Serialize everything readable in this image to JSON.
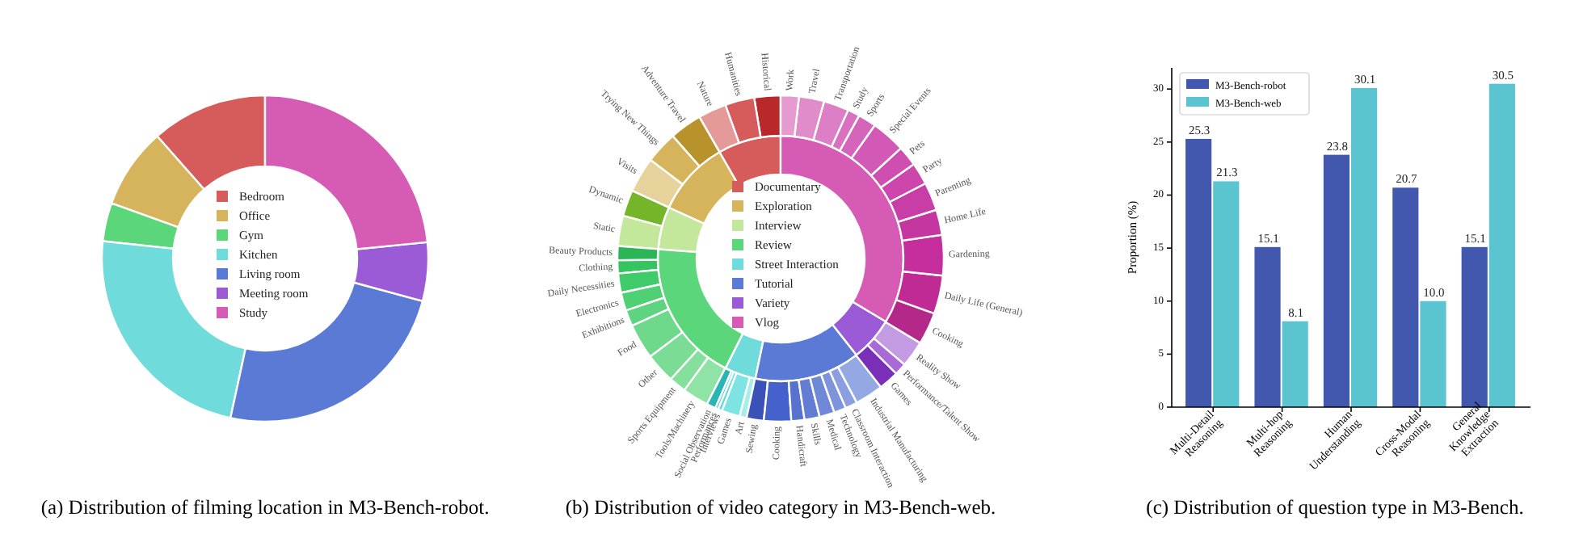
{
  "chart_data": [
    {
      "type": "donut",
      "title": "(a) Distribution of filming location in M3-Bench-robot.",
      "legend": "center",
      "categories": [
        "Bedroom",
        "Office",
        "Gym",
        "Kitchen",
        "Living room",
        "Meeting room",
        "Study"
      ],
      "values": [
        11.5,
        8.0,
        3.8,
        23.3,
        24.2,
        5.8,
        23.4
      ],
      "colors": [
        "#d65b5b",
        "#d6b45b",
        "#5bd67a",
        "#6fdbdb",
        "#5b7ad6",
        "#9b5bd6",
        "#d65bb4"
      ]
    },
    {
      "type": "donut",
      "title": "(b) Distribution of video category in M3-Bench-web.",
      "legend": "center",
      "categories": [
        "Documentary",
        "Exploration",
        "Interview",
        "Review",
        "Street Interaction",
        "Tutorial",
        "Variety",
        "Vlog"
      ],
      "values": [
        8.3,
        9.9,
        5.6,
        18.8,
        4.1,
        13.9,
        5.8,
        33.6
      ],
      "colors": [
        "#d65b5b",
        "#d6b45b",
        "#c3e89b",
        "#5bd67a",
        "#6fdbdb",
        "#5b7ad6",
        "#9b5bd6",
        "#d65bb4"
      ]
    },
    {
      "type": "donut",
      "categories": [
        "Historical",
        "Humanities",
        "Nature",
        "Adventure Travel",
        "Trying New Things",
        "Visits",
        "Dynamic",
        "Static",
        "Beauty Products",
        "Clothing",
        "Daily Necessities",
        "Electronics",
        "Exhibitions",
        "Food",
        "Other",
        "Sports Equipment",
        "Tools/Machinery",
        "Social Observation",
        "Performances",
        "Interviews",
        "Games",
        "Art",
        "Sewing",
        "Cooking",
        "Handicraft",
        "Skills",
        "Medical",
        "Technology",
        "Classroom Interaction",
        "Industrial Manufacturing",
        "Games",
        "Performance/Talent Show",
        "Reality Show",
        "Cooking",
        "Daily Life (General)",
        "Gardening",
        "Home Life",
        "Parenting",
        "Party",
        "Pets",
        "Special Events",
        "Sports",
        "Study",
        "Transportation",
        "Travel",
        "Work"
      ],
      "values": [
        2.6,
        2.9,
        2.8,
        3.2,
        3.2,
        3.5,
        2.6,
        3.0,
        1.4,
        1.3,
        1.9,
        1.8,
        1.6,
        3.5,
        3.0,
        1.7,
        2.6,
        0.9,
        0.3,
        0.4,
        1.8,
        0.7,
        1.7,
        2.7,
        1.3,
        1.5,
        1.5,
        1.2,
        1.2,
        2.8,
        2.0,
        1.2,
        2.6,
        3.2,
        3.8,
        4.0,
        2.5,
        2.8,
        2.2,
        2.0,
        3.4,
        1.8,
        1.2,
        2.5,
        2.5,
        1.8
      ],
      "colors": [
        "#b82a2a",
        "#d65b5b",
        "#e59a9a",
        "#b8922a",
        "#d6b45b",
        "#e5d39b",
        "#74b52a",
        "#c3e89b",
        "#2ab556",
        "#34c460",
        "#40cb6a",
        "#4fd075",
        "#5ed480",
        "#6ed88b",
        "#7bdc95",
        "#86e09d",
        "#8fe3a5",
        "#2ab5b5",
        "#40cfcf",
        "#5fd9d9",
        "#7de3e3",
        "#a8ecec",
        "#3a52b8",
        "#4561cc",
        "#5872d0",
        "#647dd4",
        "#7088d8",
        "#7d93dc",
        "#8a9ee0",
        "#94a8e3",
        "#7a2fb8",
        "#a86ad9",
        "#c39be3",
        "#b4288a",
        "#bf2a95",
        "#c62e9e",
        "#c536a0",
        "#c83ea6",
        "#cc46ab",
        "#cf4fb1",
        "#d25ab6",
        "#d565bb",
        "#d872c0",
        "#dc7fc6",
        "#e08ccb",
        "#e59ad0"
      ]
    },
    {
      "type": "bar",
      "title": "(c) Distribution of question type in M3-Bench.",
      "ylabel": "Proportion (%)",
      "legend": "top left",
      "categories": [
        "Multi-Detail\nReasoning",
        "Multi-hop\nReasoning",
        "Human\nUnderstanding",
        "Cross-Modal\nReasoning",
        "General\nKnowledge\nExtraction"
      ],
      "ylim": [
        0,
        32
      ],
      "yticks": [
        0,
        5,
        10,
        15,
        20,
        25,
        30
      ],
      "series": [
        {
          "name": "M3-Bench-robot",
          "color": "#4158ae",
          "values": [
            25.3,
            15.1,
            23.8,
            20.7,
            15.1
          ],
          "value_labels": [
            "25.3",
            "15.1",
            "23.8",
            "20.7",
            "15.1"
          ]
        },
        {
          "name": "M3-Bench-web",
          "color": "#5bc4d1",
          "values": [
            21.3,
            8.1,
            30.1,
            10.0,
            30.5
          ],
          "value_labels": [
            "21.3",
            "8.1",
            "30.1",
            "10.0",
            "30.5"
          ]
        }
      ]
    }
  ]
}
